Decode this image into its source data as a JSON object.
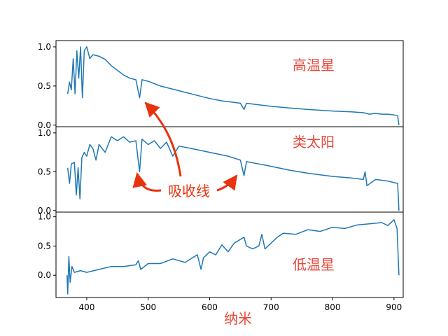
{
  "chart_data": {
    "type": "line",
    "xlabel": "纳米",
    "xlim": [
      350,
      915
    ],
    "x_ticks": [
      "400",
      "500",
      "600",
      "700",
      "800",
      "900"
    ],
    "line_color": "#1f77b4",
    "label_color": "#e8473a",
    "annotation_color": "#e8330f",
    "annotation": "吸收线",
    "panels": [
      {
        "label": "高温星",
        "ylim": [
          -0.02,
          1.08
        ],
        "y_ticks": [
          "0.0",
          "0.5",
          "1.0"
        ],
        "series": {
          "x": [
            369,
            372,
            375,
            378,
            381,
            384,
            387,
            390,
            393,
            396,
            400,
            405,
            410,
            420,
            430,
            440,
            450,
            460,
            470,
            480,
            486,
            490,
            500,
            520,
            550,
            580,
            600,
            620,
            640,
            650,
            656,
            660,
            680,
            700,
            730,
            760,
            800,
            830,
            850,
            860,
            870,
            880,
            890,
            900,
            906,
            908
          ],
          "y": [
            0.4,
            0.55,
            0.45,
            0.85,
            0.4,
            0.95,
            0.6,
            1.0,
            0.35,
            0.95,
            1.0,
            0.85,
            0.9,
            0.88,
            0.84,
            0.76,
            0.7,
            0.64,
            0.6,
            0.58,
            0.35,
            0.58,
            0.56,
            0.5,
            0.44,
            0.38,
            0.34,
            0.31,
            0.29,
            0.28,
            0.2,
            0.28,
            0.26,
            0.24,
            0.22,
            0.2,
            0.18,
            0.17,
            0.16,
            0.14,
            0.15,
            0.14,
            0.14,
            0.13,
            0.12,
            0.0
          ]
        }
      },
      {
        "label": "类太阳",
        "ylim": [
          -0.02,
          1.08
        ],
        "y_ticks": [
          "0.0",
          "0.5",
          "1.0"
        ],
        "series": {
          "x": [
            369,
            372,
            375,
            380,
            383,
            386,
            389,
            392,
            396,
            400,
            405,
            410,
            415,
            420,
            430,
            440,
            450,
            460,
            470,
            480,
            486,
            490,
            500,
            510,
            520,
            530,
            540,
            550,
            570,
            600,
            630,
            650,
            656,
            660,
            680,
            700,
            730,
            760,
            800,
            830,
            850,
            853,
            856,
            870,
            890,
            900,
            906,
            908
          ],
          "y": [
            0.55,
            0.35,
            0.6,
            0.62,
            0.2,
            0.55,
            0.15,
            0.68,
            0.75,
            0.7,
            0.85,
            0.8,
            0.65,
            0.85,
            0.75,
            0.95,
            0.9,
            0.95,
            0.88,
            0.9,
            0.5,
            0.92,
            0.85,
            0.9,
            0.8,
            0.88,
            0.7,
            0.83,
            0.8,
            0.75,
            0.7,
            0.65,
            0.45,
            0.63,
            0.6,
            0.57,
            0.52,
            0.48,
            0.44,
            0.42,
            0.4,
            0.5,
            0.32,
            0.4,
            0.38,
            0.36,
            0.35,
            0.0
          ]
        }
      },
      {
        "label": "低温星",
        "ylim": [
          -0.38,
          1.08
        ],
        "y_ticks": [
          "0.0",
          "0.5",
          "1.0"
        ],
        "series": {
          "x": [
            368,
            369,
            371,
            373,
            376,
            380,
            390,
            400,
            420,
            440,
            460,
            480,
            484,
            488,
            500,
            520,
            540,
            560,
            580,
            586,
            590,
            600,
            610,
            620,
            630,
            640,
            656,
            660,
            670,
            680,
            685,
            690,
            700,
            710,
            720,
            740,
            760,
            780,
            800,
            820,
            840,
            860,
            880,
            890,
            900,
            905,
            908
          ],
          "y": [
            0.0,
            -0.32,
            0.32,
            -0.12,
            0.15,
            0.05,
            0.08,
            0.05,
            0.1,
            0.15,
            0.15,
            0.18,
            0.25,
            0.1,
            0.2,
            0.2,
            0.28,
            0.22,
            0.35,
            0.1,
            0.3,
            0.4,
            0.35,
            0.52,
            0.4,
            0.55,
            0.65,
            0.5,
            0.45,
            0.5,
            0.7,
            0.45,
            0.55,
            0.65,
            0.72,
            0.7,
            0.78,
            0.75,
            0.82,
            0.8,
            0.86,
            0.88,
            0.9,
            0.85,
            0.95,
            0.8,
            0.0
          ]
        }
      }
    ]
  }
}
